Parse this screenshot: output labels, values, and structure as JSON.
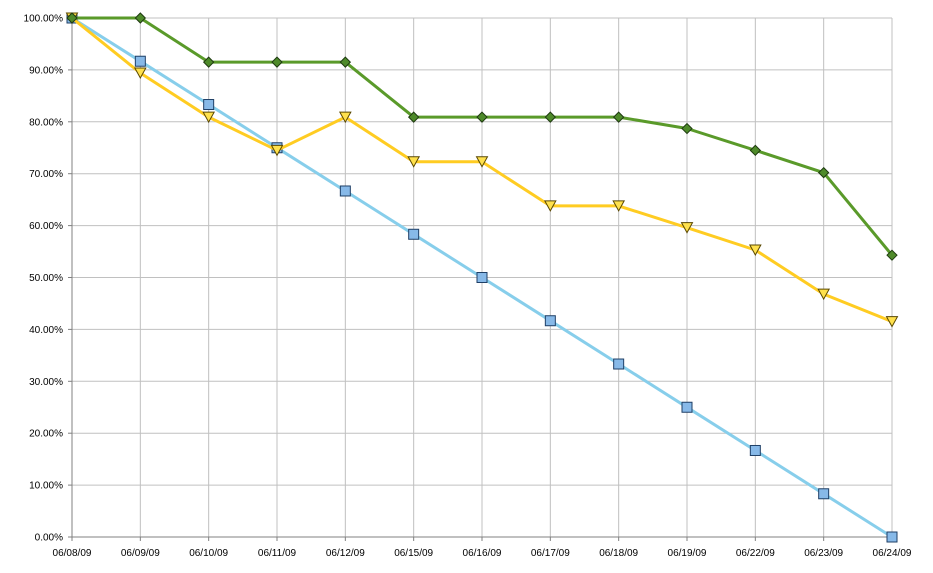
{
  "chart_data": {
    "type": "line",
    "categories": [
      "06/08/09",
      "06/09/09",
      "06/10/09",
      "06/11/09",
      "06/12/09",
      "06/15/09",
      "06/16/09",
      "06/17/09",
      "06/18/09",
      "06/19/09",
      "06/22/09",
      "06/23/09",
      "06/24/09"
    ],
    "y_tick_labels": [
      "0.00%",
      "10.00%",
      "20.00%",
      "30.00%",
      "40.00%",
      "50.00%",
      "60.00%",
      "70.00%",
      "80.00%",
      "90.00%",
      "100.00%"
    ],
    "ylim": [
      0,
      100
    ],
    "y_unit": "percent",
    "grid": true,
    "legend": "none",
    "series": [
      {
        "color": "#87CEEB",
        "marker": "square",
        "marker_fill": "#87B9E8",
        "values": [
          100,
          91.67,
          83.33,
          75.0,
          66.67,
          58.33,
          50.0,
          41.67,
          33.33,
          25.0,
          16.67,
          8.33,
          0
        ]
      },
      {
        "color": "#FFCC22",
        "marker": "triangle-down",
        "marker_fill": "#FFE14D",
        "values": [
          100,
          89.4,
          80.9,
          74.5,
          80.9,
          72.3,
          72.3,
          63.8,
          63.8,
          59.6,
          55.3,
          46.8,
          41.5
        ]
      },
      {
        "color": "#5A9A2A",
        "marker": "diamond",
        "marker_fill": "#4E8A2A",
        "values": [
          100,
          100,
          91.5,
          91.5,
          91.5,
          80.9,
          80.9,
          80.9,
          80.9,
          78.7,
          74.5,
          70.2,
          54.3
        ]
      }
    ]
  }
}
